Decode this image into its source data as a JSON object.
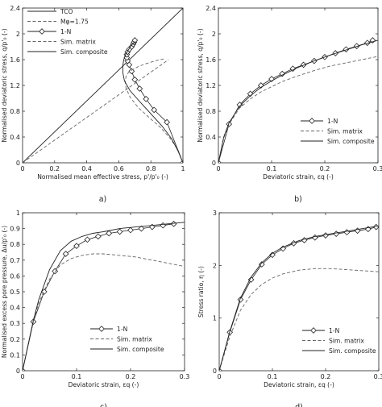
{
  "chart_data": [
    {
      "type": "line",
      "panel_label": "a)",
      "xlabel": "Normalised mean effective stress, p'/p'₀ (-)",
      "ylabel": "Normalised deviatoric stress, q/p'₀ (-)",
      "xlim": [
        0,
        1
      ],
      "ylim": [
        0,
        2.4
      ],
      "xticks": [
        0,
        0.2,
        0.4,
        0.6,
        0.8,
        1
      ],
      "xtick_labels": [
        "0",
        "0.2",
        "0.4",
        "0.6",
        "0.8",
        "1"
      ],
      "yticks": [
        0,
        0.4,
        0.8,
        1.2,
        1.6,
        2.0,
        2.4
      ],
      "ytick_labels": [
        "0",
        "0.4",
        "0.8",
        "1.2",
        "1.6",
        "2",
        "2.4"
      ],
      "grid": false,
      "legend_position": "top-left",
      "series": [
        {
          "name": "TCO",
          "style": "solid",
          "x": [
            0,
            1.0
          ],
          "y": [
            0,
            2.4
          ]
        },
        {
          "name": "Mφ=1.75",
          "style": "dashed",
          "x": [
            0,
            0.91
          ],
          "y": [
            0,
            1.6
          ]
        },
        {
          "name": "1-N",
          "style": "markers",
          "x": [
            1.0,
            0.9,
            0.82,
            0.77,
            0.73,
            0.7,
            0.68,
            0.665,
            0.655,
            0.65,
            0.65,
            0.655,
            0.665,
            0.68,
            0.69,
            0.695,
            0.7
          ],
          "y": [
            0.0,
            0.63,
            0.82,
            0.99,
            1.15,
            1.29,
            1.42,
            1.52,
            1.58,
            1.63,
            1.68,
            1.72,
            1.76,
            1.8,
            1.84,
            1.87,
            1.9
          ]
        },
        {
          "name": "Sim. matrix",
          "style": "dashed",
          "x": [
            1.0,
            0.97,
            0.92,
            0.86,
            0.79,
            0.72,
            0.67,
            0.645,
            0.64,
            0.645,
            0.66,
            0.69,
            0.72,
            0.76,
            0.8,
            0.84,
            0.88
          ],
          "y": [
            0.0,
            0.2,
            0.38,
            0.55,
            0.7,
            0.86,
            1.02,
            1.16,
            1.26,
            1.34,
            1.4,
            1.45,
            1.49,
            1.53,
            1.56,
            1.59,
            1.61
          ]
        },
        {
          "name": "Sim. composite",
          "style": "solid",
          "x": [
            1.0,
            0.97,
            0.93,
            0.87,
            0.8,
            0.73,
            0.67,
            0.635,
            0.625,
            0.625,
            0.63,
            0.64,
            0.655,
            0.67,
            0.685,
            0.7
          ],
          "y": [
            0.0,
            0.18,
            0.37,
            0.57,
            0.76,
            0.95,
            1.12,
            1.27,
            1.4,
            1.5,
            1.59,
            1.67,
            1.73,
            1.79,
            1.84,
            1.88
          ]
        }
      ]
    },
    {
      "type": "line",
      "panel_label": "b)",
      "xlabel": "Deviatoric strain, εq (-)",
      "ylabel": "Normalised deviatoric stress, q/p'₀ (-)",
      "xlim": [
        0,
        0.3
      ],
      "ylim": [
        0,
        2.4
      ],
      "xticks": [
        0,
        0.1,
        0.2,
        0.3
      ],
      "xtick_labels": [
        "0",
        "0.1",
        "0.2",
        "0.3"
      ],
      "yticks": [
        0,
        0.4,
        0.8,
        1.2,
        1.6,
        2.0,
        2.4
      ],
      "ytick_labels": [
        "0",
        "0.4",
        "0.8",
        "1.2",
        "1.6",
        "2",
        "2.4"
      ],
      "grid": false,
      "legend_position": "bottom-right",
      "series": [
        {
          "name": "1-N",
          "style": "markers",
          "x": [
            0,
            0.02,
            0.04,
            0.06,
            0.08,
            0.1,
            0.12,
            0.14,
            0.16,
            0.18,
            0.2,
            0.22,
            0.24,
            0.26,
            0.28,
            0.29
          ],
          "y": [
            0,
            0.6,
            0.9,
            1.07,
            1.2,
            1.3,
            1.38,
            1.46,
            1.52,
            1.58,
            1.64,
            1.7,
            1.76,
            1.81,
            1.86,
            1.9
          ]
        },
        {
          "name": "Sim. matrix",
          "style": "dashed",
          "x": [
            0,
            0.01,
            0.02,
            0.04,
            0.06,
            0.08,
            0.1,
            0.12,
            0.15,
            0.18,
            0.21,
            0.24,
            0.27,
            0.3
          ],
          "y": [
            0,
            0.38,
            0.6,
            0.85,
            0.99,
            1.1,
            1.18,
            1.26,
            1.35,
            1.43,
            1.5,
            1.55,
            1.6,
            1.65
          ]
        },
        {
          "name": "Sim. composite",
          "style": "solid",
          "x": [
            0,
            0.01,
            0.02,
            0.04,
            0.06,
            0.08,
            0.1,
            0.12,
            0.15,
            0.18,
            0.21,
            0.24,
            0.27,
            0.3
          ],
          "y": [
            0,
            0.4,
            0.62,
            0.88,
            1.04,
            1.17,
            1.27,
            1.36,
            1.48,
            1.58,
            1.67,
            1.75,
            1.83,
            1.9
          ]
        }
      ]
    },
    {
      "type": "line",
      "panel_label": "c)",
      "xlabel": "Deviatoric strain, εq (-)",
      "ylabel": "Normalised excess pore pressure, Δu/p'₀ (-)",
      "xlim": [
        0,
        0.3
      ],
      "ylim": [
        0,
        1.0
      ],
      "xticks": [
        0,
        0.1,
        0.2,
        0.3
      ],
      "xtick_labels": [
        "0",
        "0.1",
        "0.2",
        "0.3"
      ],
      "yticks": [
        0,
        0.1,
        0.2,
        0.3,
        0.4,
        0.5,
        0.6,
        0.7,
        0.8,
        0.9,
        1.0
      ],
      "ytick_labels": [
        "0",
        "0.1",
        "0.2",
        "0.3",
        "0.4",
        "0.5",
        "0.6",
        "0.7",
        "0.8",
        "0.9",
        "1"
      ],
      "grid": false,
      "legend_position": "bottom-left",
      "series": [
        {
          "name": "1-N",
          "style": "markers",
          "x": [
            0,
            0.02,
            0.04,
            0.06,
            0.08,
            0.1,
            0.12,
            0.14,
            0.16,
            0.18,
            0.2,
            0.22,
            0.24,
            0.26,
            0.28
          ],
          "y": [
            0,
            0.31,
            0.5,
            0.63,
            0.74,
            0.79,
            0.83,
            0.85,
            0.87,
            0.88,
            0.89,
            0.9,
            0.91,
            0.92,
            0.93
          ]
        },
        {
          "name": "Sim. matrix",
          "style": "dashed",
          "x": [
            0,
            0.01,
            0.02,
            0.03,
            0.05,
            0.07,
            0.09,
            0.11,
            0.13,
            0.15,
            0.18,
            0.21,
            0.24,
            0.27,
            0.3
          ],
          "y": [
            0,
            0.16,
            0.31,
            0.43,
            0.58,
            0.67,
            0.71,
            0.73,
            0.74,
            0.74,
            0.73,
            0.72,
            0.7,
            0.68,
            0.66
          ]
        },
        {
          "name": "Sim. composite",
          "style": "solid",
          "x": [
            0,
            0.01,
            0.02,
            0.03,
            0.05,
            0.07,
            0.09,
            0.11,
            0.13,
            0.15,
            0.18,
            0.21,
            0.24,
            0.27,
            0.3
          ],
          "y": [
            0,
            0.16,
            0.32,
            0.45,
            0.64,
            0.76,
            0.82,
            0.85,
            0.87,
            0.88,
            0.9,
            0.91,
            0.92,
            0.93,
            0.94
          ]
        }
      ]
    },
    {
      "type": "line",
      "panel_label": "d)",
      "xlabel": "Deviatoric strain, εq (-)",
      "ylabel": "Stress ratio, η (-)",
      "xlim": [
        0,
        0.3
      ],
      "ylim": [
        0,
        3
      ],
      "xticks": [
        0,
        0.1,
        0.2,
        0.3
      ],
      "xtick_labels": [
        "0",
        "0.1",
        "0.2",
        "0.3"
      ],
      "yticks": [
        0,
        1,
        2,
        3
      ],
      "ytick_labels": [
        "0",
        "1",
        "2",
        "3"
      ],
      "grid": false,
      "legend_position": "bottom-right",
      "series": [
        {
          "name": "1-N",
          "style": "markers",
          "x": [
            0,
            0.02,
            0.04,
            0.06,
            0.08,
            0.1,
            0.12,
            0.14,
            0.16,
            0.18,
            0.2,
            0.22,
            0.24,
            0.26,
            0.28,
            0.295
          ],
          "y": [
            0,
            0.73,
            1.35,
            1.73,
            2.02,
            2.2,
            2.32,
            2.42,
            2.48,
            2.53,
            2.57,
            2.6,
            2.63,
            2.66,
            2.69,
            2.73
          ]
        },
        {
          "name": "Sim. matrix",
          "style": "dashed",
          "x": [
            0,
            0.02,
            0.04,
            0.06,
            0.08,
            0.1,
            0.12,
            0.15,
            0.18,
            0.21,
            0.24,
            0.27,
            0.3
          ],
          "y": [
            0,
            0.65,
            1.15,
            1.45,
            1.64,
            1.76,
            1.84,
            1.91,
            1.94,
            1.94,
            1.92,
            1.9,
            1.88
          ]
        },
        {
          "name": "Sim. composite",
          "style": "solid",
          "x": [
            0,
            0.02,
            0.04,
            0.06,
            0.08,
            0.1,
            0.12,
            0.15,
            0.18,
            0.21,
            0.24,
            0.27,
            0.3
          ],
          "y": [
            0,
            0.75,
            1.38,
            1.78,
            2.05,
            2.23,
            2.35,
            2.47,
            2.55,
            2.6,
            2.65,
            2.7,
            2.75
          ]
        }
      ]
    }
  ]
}
